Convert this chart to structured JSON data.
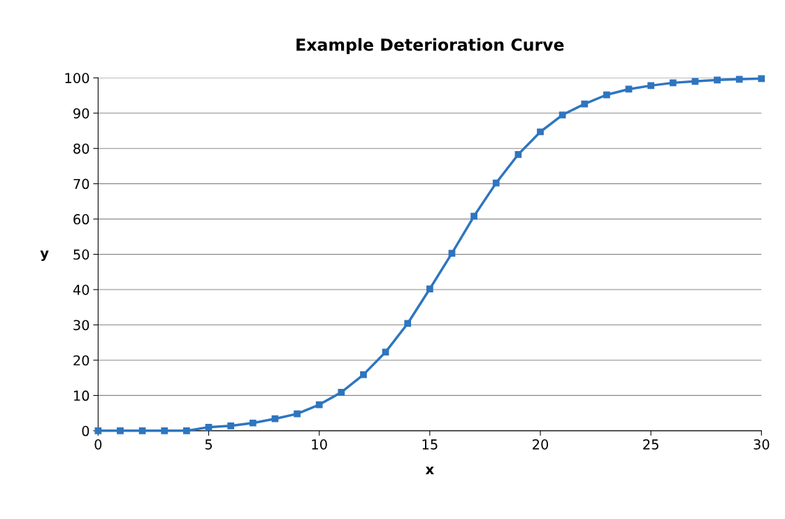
{
  "chart_data": {
    "type": "line",
    "title": "Example Deterioration Curve",
    "xlabel": "x",
    "ylabel": "y",
    "x": [
      0,
      1,
      2,
      3,
      4,
      5,
      6,
      7,
      8,
      9,
      10,
      11,
      12,
      13,
      14,
      15,
      16,
      17,
      18,
      19,
      20,
      21,
      22,
      23,
      24,
      25,
      26,
      27,
      28,
      29,
      30
    ],
    "series": [
      {
        "color": "#2e75c0",
        "values": [
          0,
          0,
          0,
          0,
          0,
          1,
          1.4,
          2.2,
          3.4,
          4.8,
          7.4,
          10.9,
          15.9,
          22.3,
          30.4,
          40.2,
          50.3,
          60.8,
          70.2,
          78.3,
          84.7,
          89.5,
          92.6,
          95.2,
          96.8,
          97.8,
          98.6,
          99.0,
          99.4,
          99.6,
          99.8
        ]
      }
    ],
    "xlim": [
      0,
      30
    ],
    "xticks": [
      0,
      5,
      10,
      15,
      20,
      25,
      30
    ],
    "ylim": [
      0,
      100
    ],
    "yticks": [
      0,
      10,
      20,
      30,
      40,
      50,
      60,
      70,
      80,
      90,
      100
    ],
    "grid": "y",
    "marker": "square",
    "line_style": "solid",
    "legend": false
  }
}
